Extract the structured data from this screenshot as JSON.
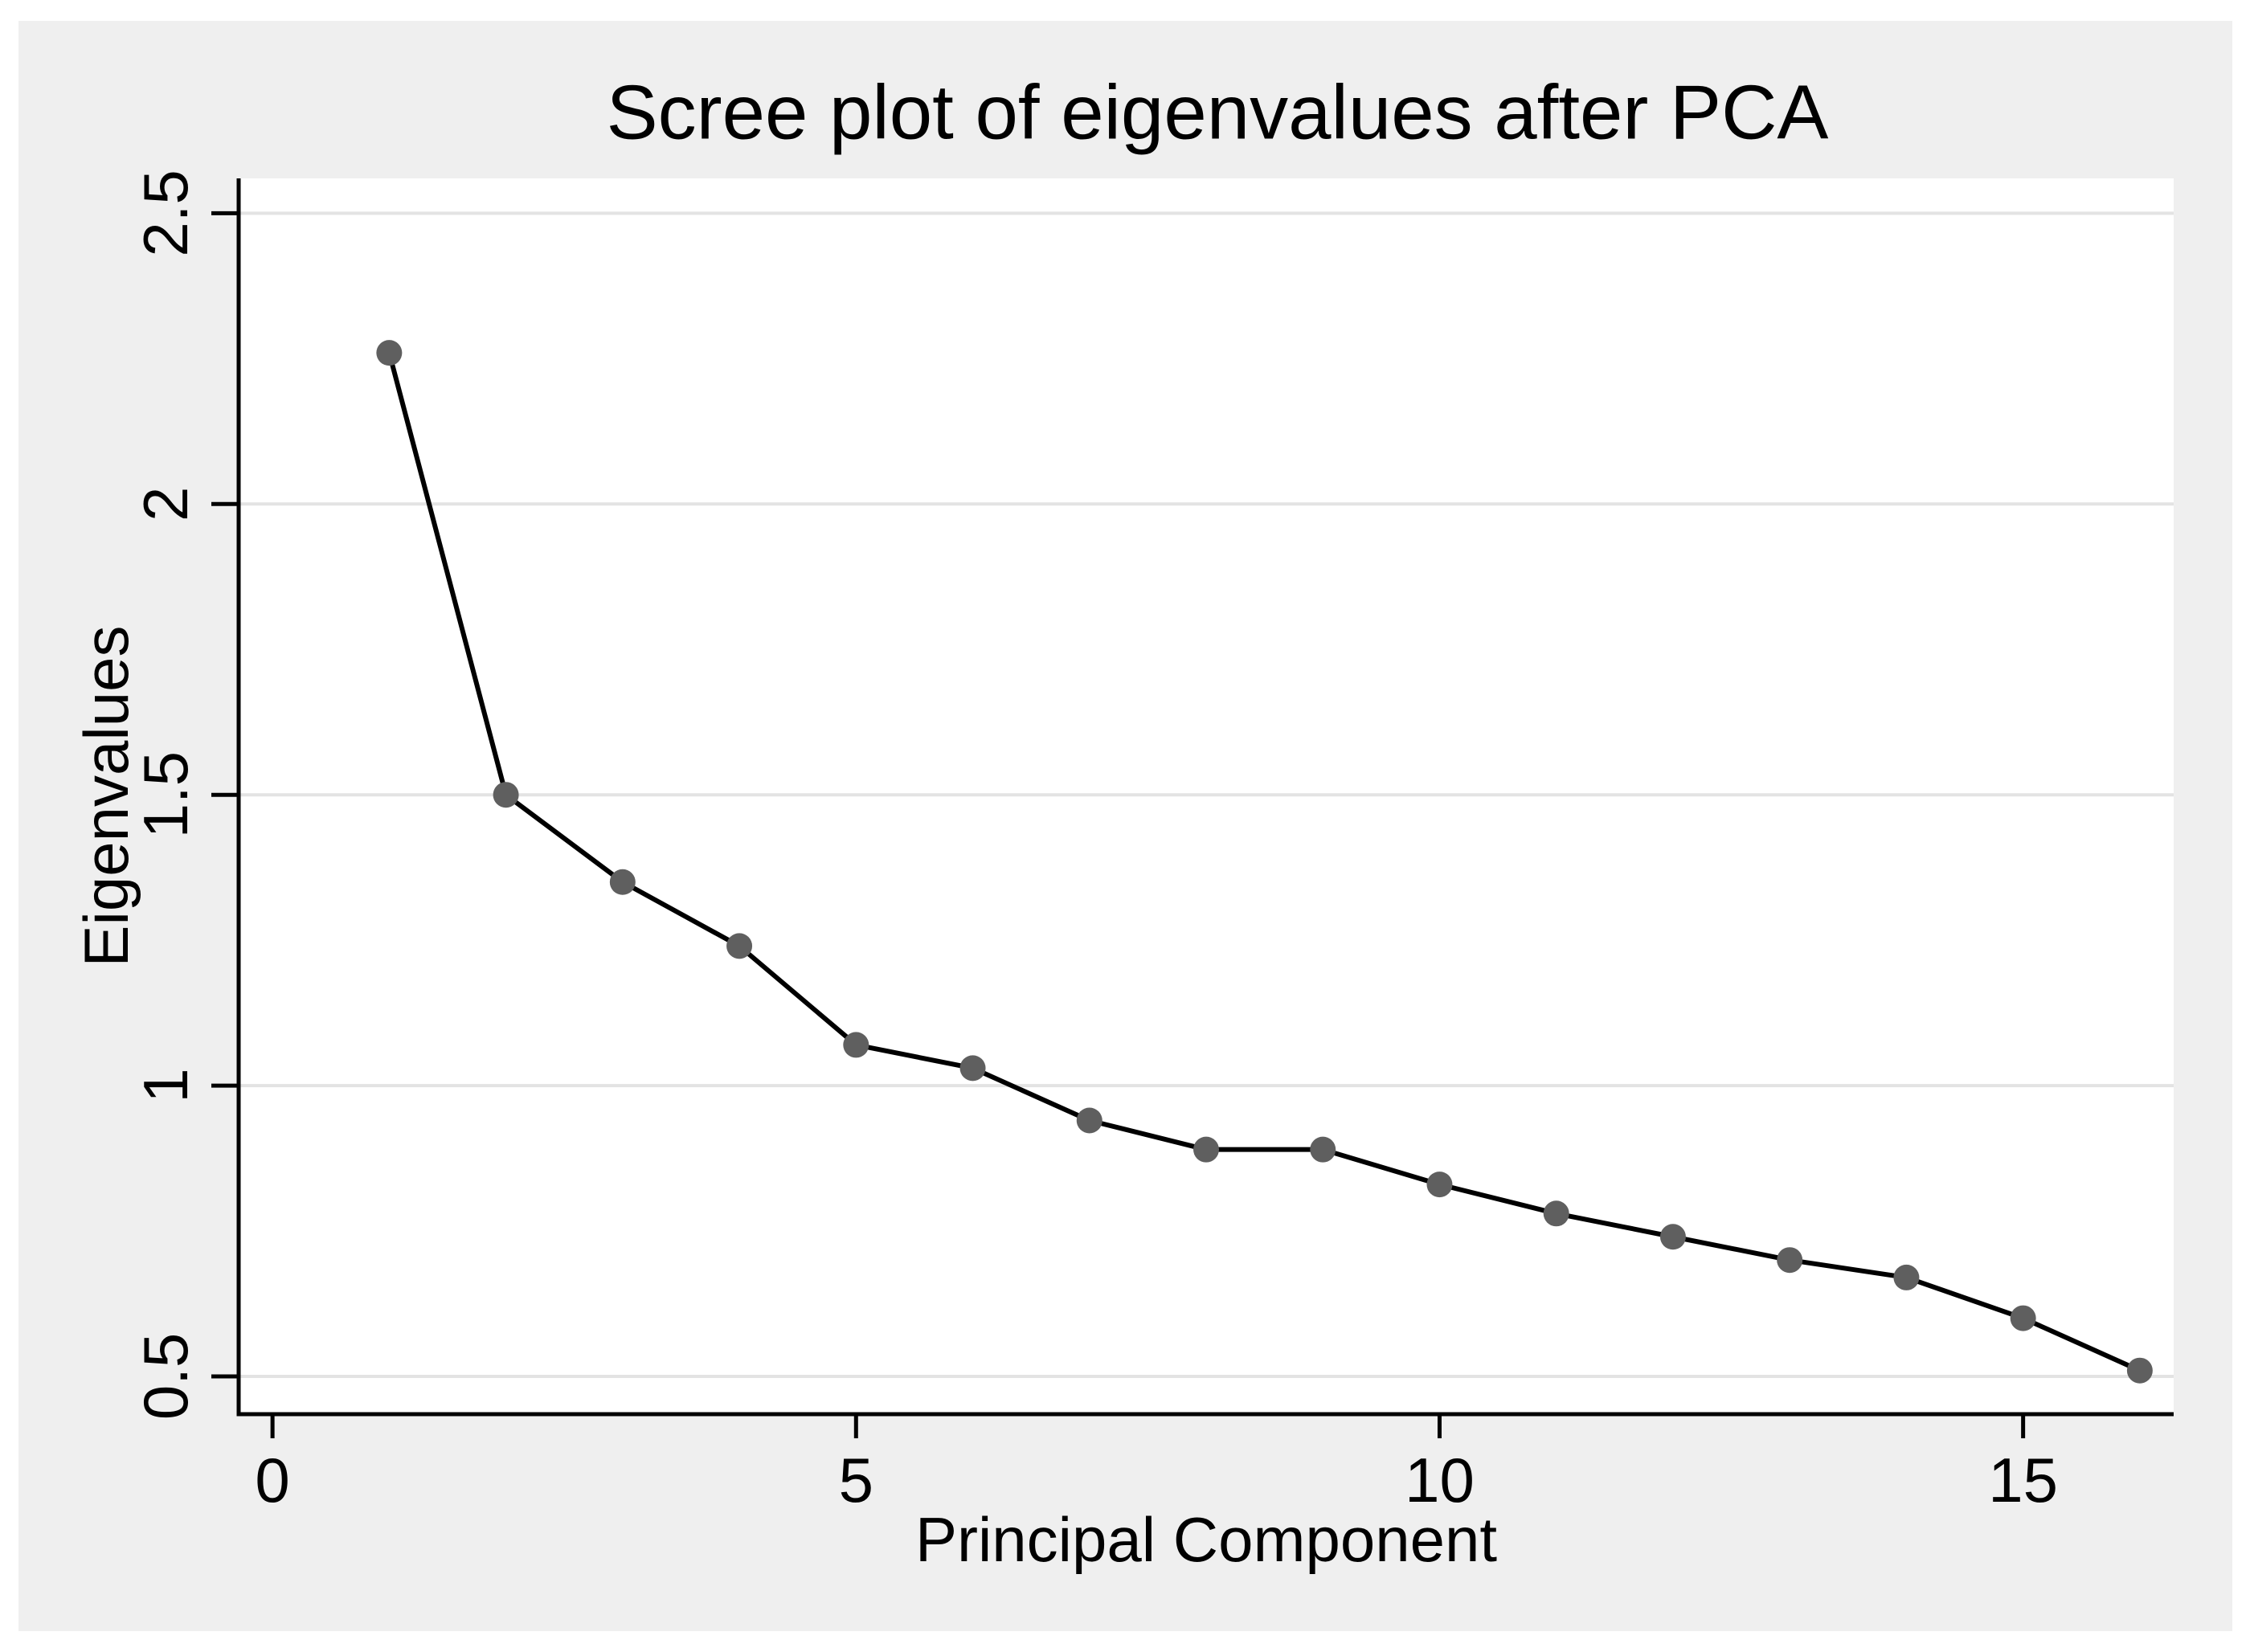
{
  "window": {
    "background_color": "#ffffff",
    "canvas_color": "#efefef"
  },
  "chart_data": {
    "type": "line",
    "title": "Scree plot of eigenvalues after PCA",
    "xlabel": "Principal Component",
    "ylabel": "Eigenvalues",
    "x": [
      1,
      2,
      3,
      4,
      5,
      6,
      7,
      8,
      9,
      10,
      11,
      12,
      13,
      14,
      15,
      16
    ],
    "values": [
      2.26,
      1.5,
      1.35,
      1.24,
      1.07,
      1.03,
      0.94,
      0.89,
      0.89,
      0.83,
      0.78,
      0.74,
      0.7,
      0.67,
      0.6,
      0.51
    ],
    "series_name": "Eigenvalues",
    "xlim": [
      -0.29,
      16.29
    ],
    "ylim": [
      0.435,
      2.56
    ],
    "x_ticks": [
      0,
      5,
      10,
      15
    ],
    "x_tick_labels": [
      "0",
      "5",
      "10",
      "15"
    ],
    "y_ticks": [
      0.5,
      1,
      1.5,
      2,
      2.5
    ],
    "y_tick_labels": [
      "0.5",
      "1",
      "1.5",
      "2",
      "2.5"
    ],
    "grid": "horizontal",
    "legend": "none",
    "line_color": "#000000",
    "marker_color": "#5f5f5f",
    "grid_color": "#e3e3e3",
    "y_tick_label_rotation": -90,
    "ylabel_rotation": -90
  }
}
